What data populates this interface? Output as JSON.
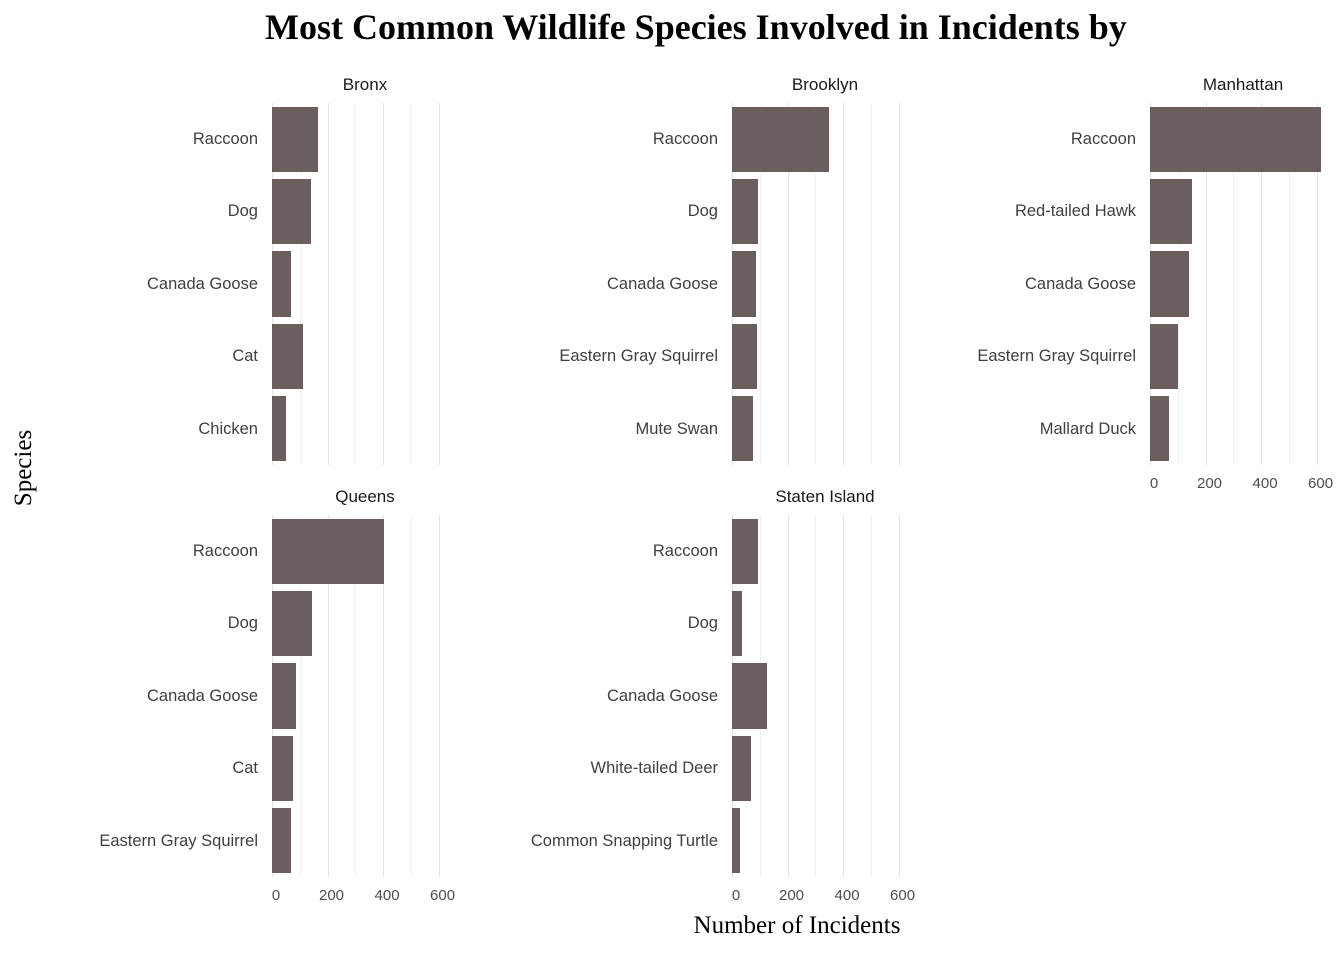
{
  "title": "Most Common Wildlife Species Involved in Incidents by",
  "ylabel": "Species",
  "xlabel": "Number of Incidents",
  "chart_data": {
    "type": "bar",
    "orientation": "horizontal",
    "bar_color": "#6b5e5e",
    "xlim": [
      0,
      670
    ],
    "x_ticks": [
      0,
      200,
      400,
      600
    ],
    "minor_ticks": [
      100,
      300,
      500
    ],
    "grid": true,
    "facets": [
      {
        "name": "Bronx",
        "show_x_axis": false,
        "categories": [
          "Raccoon",
          "Dog",
          "Canada Goose",
          "Cat",
          "Chicken"
        ],
        "values": [
          165,
          140,
          70,
          110,
          50
        ]
      },
      {
        "name": "Brooklyn",
        "show_x_axis": false,
        "categories": [
          "Raccoon",
          "Dog",
          "Canada Goose",
          "Eastern Gray Squirrel",
          "Mute Swan"
        ],
        "values": [
          350,
          95,
          85,
          90,
          75
        ]
      },
      {
        "name": "Manhattan",
        "show_x_axis": true,
        "categories": [
          "Raccoon",
          "Red-tailed Hawk",
          "Canada Goose",
          "Eastern Gray Squirrel",
          "Mallard Duck"
        ],
        "values": [
          615,
          150,
          140,
          100,
          70
        ]
      },
      {
        "name": "Queens",
        "show_x_axis": true,
        "categories": [
          "Raccoon",
          "Dog",
          "Canada Goose",
          "Cat",
          "Eastern Gray Squirrel"
        ],
        "values": [
          405,
          145,
          85,
          75,
          70
        ]
      },
      {
        "name": "Staten Island",
        "show_x_axis": true,
        "categories": [
          "Raccoon",
          "Dog",
          "Canada Goose",
          "White-tailed Deer",
          "Common Snapping Turtle"
        ],
        "values": [
          95,
          35,
          125,
          70,
          30
        ]
      }
    ]
  }
}
